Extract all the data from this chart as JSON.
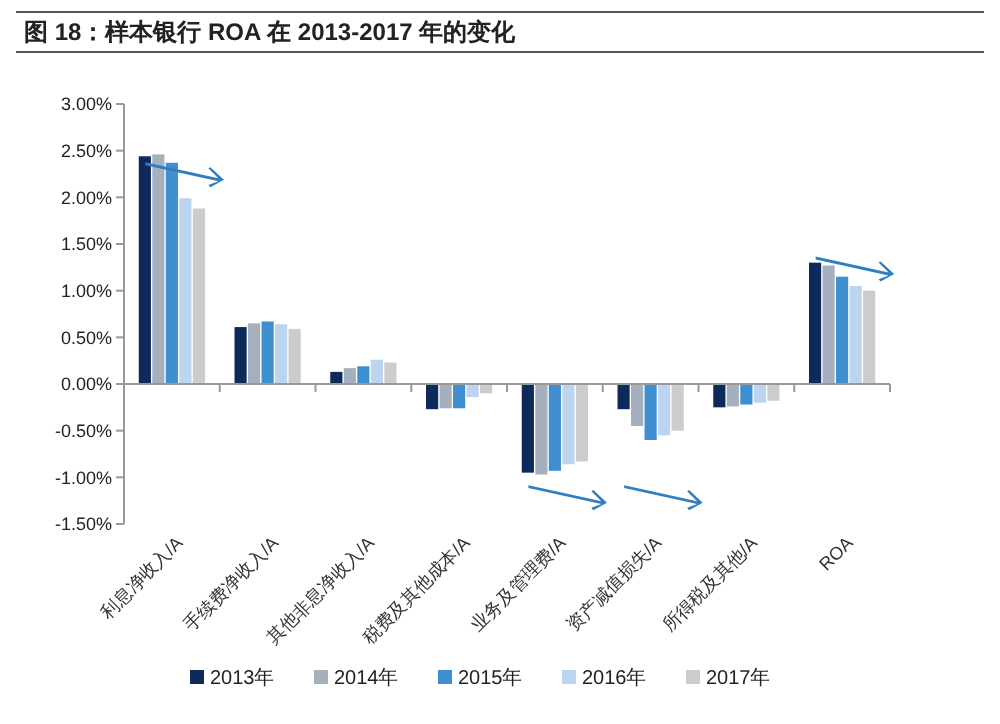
{
  "chart_data": {
    "type": "bar",
    "title": "图 18：样本银行 ROA 在 2013-2017 年的变化",
    "categories": [
      "利息净收入/A",
      "手续费净收入/A",
      "其他非息净收入/A",
      "税费及其他成本/A",
      "业务及管理费/A",
      "资产减值损失/A",
      "所得税及其他/A",
      "ROA"
    ],
    "series": [
      {
        "name": "2013年",
        "color": "#0d2a5a",
        "values": [
          2.44,
          0.61,
          0.13,
          -0.27,
          -0.95,
          -0.27,
          -0.25,
          1.3
        ]
      },
      {
        "name": "2014年",
        "color": "#a5b0bf",
        "values": [
          2.46,
          0.65,
          0.17,
          -0.26,
          -0.97,
          -0.45,
          -0.24,
          1.27
        ]
      },
      {
        "name": "2015年",
        "color": "#3f8fd0",
        "values": [
          2.37,
          0.67,
          0.19,
          -0.26,
          -0.93,
          -0.6,
          -0.22,
          1.15
        ]
      },
      {
        "name": "2016年",
        "color": "#bcd4ef",
        "values": [
          1.99,
          0.64,
          0.26,
          -0.14,
          -0.86,
          -0.55,
          -0.2,
          1.05
        ]
      },
      {
        "name": "2017年",
        "color": "#cccccc",
        "values": [
          1.88,
          0.59,
          0.23,
          -0.1,
          -0.83,
          -0.5,
          -0.18,
          1.0
        ]
      }
    ],
    "ylim": [
      -1.5,
      3
    ],
    "yticks": [
      {
        "value": -1.5,
        "label": "-1.50%"
      },
      {
        "value": -1,
        "label": "-1.00%"
      },
      {
        "value": -0.5,
        "label": "-0.50%"
      },
      {
        "value": 0,
        "label": "0.00%"
      },
      {
        "value": 0.5,
        "label": "0.50%"
      },
      {
        "value": 1,
        "label": "1.00%"
      },
      {
        "value": 1.5,
        "label": "1.50%"
      },
      {
        "value": 2,
        "label": "2.00%"
      },
      {
        "value": 2.5,
        "label": "2.50%"
      },
      {
        "value": 3,
        "label": "3.00%"
      }
    ],
    "legend": "bottom"
  }
}
